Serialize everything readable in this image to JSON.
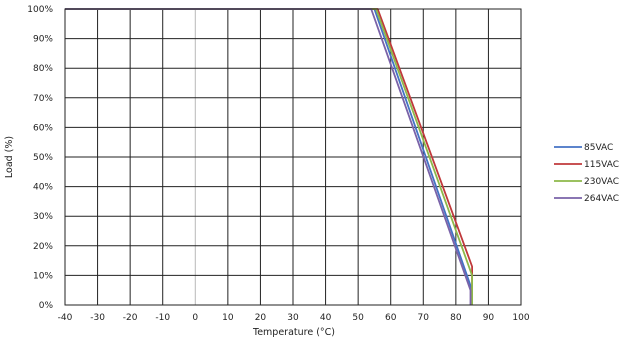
{
  "chart_data": {
    "type": "line",
    "title": "",
    "xlabel": "Temperature (°C)",
    "ylabel": "Load (%)",
    "xlim": [
      -40,
      100
    ],
    "ylim": [
      0,
      100
    ],
    "x_ticks": [
      "-40",
      "-30",
      "-20",
      "-10",
      "0",
      "10",
      "20",
      "30",
      "40",
      "50",
      "60",
      "70",
      "80",
      "90",
      "100"
    ],
    "y_ticks": [
      "0%",
      "10%",
      "20%",
      "30%",
      "40%",
      "50%",
      "60%",
      "70%",
      "80%",
      "90%",
      "100%"
    ],
    "grid": true,
    "legend_position": "right",
    "series": [
      {
        "name": "85VAC",
        "color": "#4472c4",
        "points": [
          [
            -40,
            100
          ],
          [
            55,
            100
          ],
          [
            85,
            5
          ],
          [
            85,
            0
          ]
        ]
      },
      {
        "name": "115VAC",
        "color": "#c0393b",
        "points": [
          [
            -40,
            100
          ],
          [
            56,
            100
          ],
          [
            85,
            13
          ],
          [
            85,
            0
          ]
        ]
      },
      {
        "name": "230VAC",
        "color": "#8db84a",
        "points": [
          [
            -40,
            100
          ],
          [
            55.5,
            100
          ],
          [
            85,
            10
          ],
          [
            85,
            0
          ]
        ]
      },
      {
        "name": "264VAC",
        "color": "#7a62a8",
        "points": [
          [
            -40,
            100
          ],
          [
            54,
            100
          ],
          [
            84.5,
            5
          ],
          [
            84.5,
            0
          ]
        ]
      }
    ]
  }
}
